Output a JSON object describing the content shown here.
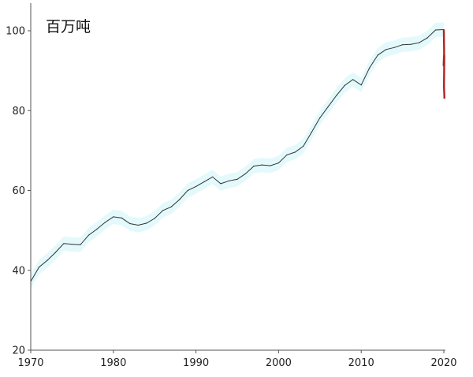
{
  "chart_data": {
    "type": "area",
    "title": "",
    "unit_label": "百万吨",
    "xlabel": "",
    "ylabel": "",
    "xlim": [
      1970,
      2020
    ],
    "ylim": [
      20,
      105
    ],
    "x_ticks": [
      1970,
      1980,
      1990,
      2000,
      2010,
      2020
    ],
    "y_ticks": [
      20,
      40,
      60,
      80,
      100
    ],
    "grid": false,
    "colors": {
      "line": "#333333",
      "band": "#e4f9fb",
      "drop": "#b22222",
      "axis": "#555555"
    },
    "x": [
      1970,
      1971,
      1972,
      1973,
      1974,
      1975,
      1976,
      1977,
      1978,
      1979,
      1980,
      1981,
      1982,
      1983,
      1984,
      1985,
      1986,
      1987,
      1988,
      1989,
      1990,
      1991,
      1992,
      1993,
      1994,
      1995,
      1996,
      1997,
      1998,
      1999,
      2000,
      2001,
      2002,
      2003,
      2004,
      2005,
      2006,
      2007,
      2008,
      2009,
      2010,
      2011,
      2012,
      2013,
      2014,
      2015,
      2016,
      2017,
      2018,
      2019,
      2020
    ],
    "series": [
      {
        "values": [
          37.2,
          40.8,
          42.5,
          44.5,
          46.7,
          46.5,
          46.4,
          48.8,
          50.3,
          52.0,
          53.4,
          53.1,
          51.7,
          51.3,
          51.8,
          53.0,
          55.0,
          55.9,
          57.7,
          60.0,
          61.0,
          62.2,
          63.4,
          61.7,
          62.4,
          62.8,
          64.2,
          66.1,
          66.4,
          66.2,
          66.9,
          68.9,
          69.6,
          71.1,
          74.6,
          78.2,
          81.0,
          83.8,
          86.3,
          87.8,
          86.4,
          90.7,
          93.9,
          95.3,
          95.8,
          96.5,
          96.6,
          97.0,
          98.2,
          100.2,
          100.3
        ],
        "band_halfwidth": 1.8
      }
    ],
    "drop_2020": {
      "x": 2020,
      "from": 100.3,
      "to": 83.0
    }
  }
}
